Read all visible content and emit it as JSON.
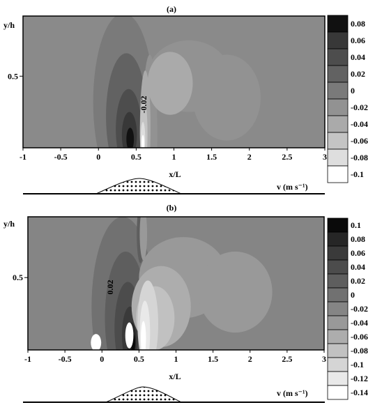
{
  "chart_data": [
    {
      "type": "heatmap",
      "panel_label": "(a)",
      "xlabel": "x/L",
      "ylabel": "y/h",
      "xlim": [
        -1,
        3
      ],
      "ylim": [
        0,
        0.92
      ],
      "x_ticks": [
        "-1",
        "-0.5",
        "0",
        "0.5",
        "1",
        "1.5",
        "2",
        "2.5",
        "3"
      ],
      "y_ticks": [
        "0.5"
      ],
      "contour_label": "-0.02",
      "colorbar_title": "v (m s⁻¹)",
      "colorbar_levels": [
        "0.08",
        "0.06",
        "0.04",
        "0.02",
        "0",
        "-0.02",
        "-0.04",
        "-0.06",
        "-0.08",
        "-0.1"
      ],
      "colorbar_colors": [
        "#111111",
        "#383838",
        "#4d4d4d",
        "#626262",
        "#7a7a7a",
        "#929292",
        "#aaaaaa",
        "#c4c4c4",
        "#dedede",
        "#ffffff"
      ],
      "background_color": "#8a8a8a",
      "fields": [
        {
          "x": 0.33,
          "y": 0.32,
          "rx": 0.4,
          "ry": 0.62,
          "color": "#7a7a7a"
        },
        {
          "x": 0.37,
          "y": 0.22,
          "rx": 0.27,
          "ry": 0.44,
          "color": "#626262"
        },
        {
          "x": 0.4,
          "y": 0.13,
          "rx": 0.17,
          "ry": 0.28,
          "color": "#4d4d4d"
        },
        {
          "x": 0.41,
          "y": 0.09,
          "rx": 0.1,
          "ry": 0.16,
          "color": "#383838"
        },
        {
          "x": 0.42,
          "y": 0.06,
          "rx": 0.05,
          "ry": 0.08,
          "color": "#111111"
        },
        {
          "x": 0.68,
          "y": 0.1,
          "rx": 0.1,
          "ry": 0.55,
          "color": "#929292"
        },
        {
          "x": 1.2,
          "y": 0.5,
          "rx": 0.55,
          "ry": 0.25,
          "color": "#929292"
        },
        {
          "x": 1.7,
          "y": 0.35,
          "rx": 0.45,
          "ry": 0.3,
          "color": "#929292"
        },
        {
          "x": 0.95,
          "y": 0.45,
          "rx": 0.3,
          "ry": 0.22,
          "color": "#aaaaaa"
        },
        {
          "x": 0.62,
          "y": 0.14,
          "rx": 0.07,
          "ry": 0.4,
          "color": "#aaaaaa"
        },
        {
          "x": 0.6,
          "y": 0.1,
          "rx": 0.05,
          "ry": 0.25,
          "color": "#c4c4c4"
        },
        {
          "x": 0.59,
          "y": 0.06,
          "rx": 0.03,
          "ry": 0.12,
          "color": "#dedede"
        },
        {
          "x": 0.59,
          "y": 0.03,
          "rx": 0.018,
          "ry": 0.06,
          "color": "#ffffff"
        }
      ]
    },
    {
      "type": "heatmap",
      "panel_label": "(b)",
      "xlabel": "x/L",
      "ylabel": "y/h",
      "xlim": [
        -1,
        3
      ],
      "ylim": [
        0,
        0.92
      ],
      "x_ticks": [
        "-1",
        "-0.5",
        "0",
        "0.5",
        "1",
        "1.5",
        "2",
        "2.5",
        "3"
      ],
      "y_ticks": [
        "0.5"
      ],
      "contour_label": "0.02",
      "colorbar_title": "v (m s⁻¹)",
      "colorbar_levels": [
        "0.1",
        "0.08",
        "0.06",
        "0.04",
        "0.02",
        "0",
        "-0.02",
        "-0.04",
        "-0.06",
        "-0.08",
        "-0.1",
        "-0.12",
        "-0.14"
      ],
      "colorbar_colors": [
        "#0a0a0a",
        "#262626",
        "#3a3a3a",
        "#4c4c4c",
        "#5e5e5e",
        "#717171",
        "#858585",
        "#999999",
        "#adadad",
        "#c1c1c1",
        "#d5d5d5",
        "#e9e9e9",
        "#ffffff"
      ],
      "background_color": "#858585",
      "fields": [
        {
          "x": 0.28,
          "y": 0.3,
          "rx": 0.42,
          "ry": 0.62,
          "color": "#717171"
        },
        {
          "x": 0.32,
          "y": 0.22,
          "rx": 0.28,
          "ry": 0.46,
          "color": "#5e5e5e"
        },
        {
          "x": 0.35,
          "y": 0.15,
          "rx": 0.18,
          "ry": 0.32,
          "color": "#4c4c4c"
        },
        {
          "x": 0.38,
          "y": 0.1,
          "rx": 0.11,
          "ry": 0.2,
          "color": "#3a3a3a"
        },
        {
          "x": 0.4,
          "y": 0.07,
          "rx": 0.06,
          "ry": 0.12,
          "color": "#262626"
        },
        {
          "x": 0.42,
          "y": 0.05,
          "rx": 0.03,
          "ry": 0.06,
          "color": "#0a0a0a"
        },
        {
          "x": 0.52,
          "y": 0.8,
          "rx": 0.05,
          "ry": 0.2,
          "color": "#5e5e5e"
        },
        {
          "x": 0.56,
          "y": 0.8,
          "rx": 0.05,
          "ry": 0.18,
          "color": "#999999"
        },
        {
          "x": 1.1,
          "y": 0.5,
          "rx": 0.6,
          "ry": 0.28,
          "color": "#999999"
        },
        {
          "x": 1.8,
          "y": 0.4,
          "rx": 0.5,
          "ry": 0.28,
          "color": "#999999"
        },
        {
          "x": 0.8,
          "y": 0.3,
          "rx": 0.4,
          "ry": 0.28,
          "color": "#adadad"
        },
        {
          "x": 0.72,
          "y": 0.22,
          "rx": 0.26,
          "ry": 0.22,
          "color": "#c1c1c1"
        },
        {
          "x": 0.62,
          "y": 0.18,
          "rx": 0.14,
          "ry": 0.3,
          "color": "#d5d5d5"
        },
        {
          "x": 0.58,
          "y": 0.12,
          "rx": 0.07,
          "ry": 0.22,
          "color": "#e9e9e9"
        },
        {
          "x": 0.56,
          "y": 0.08,
          "rx": 0.035,
          "ry": 0.12,
          "color": "#ffffff"
        },
        {
          "x": 0.37,
          "y": 0.1,
          "rx": 0.055,
          "ry": 0.09,
          "color": "#ffffff"
        },
        {
          "x": -0.08,
          "y": 0.05,
          "rx": 0.07,
          "ry": 0.06,
          "color": "#ffffff"
        }
      ]
    }
  ]
}
